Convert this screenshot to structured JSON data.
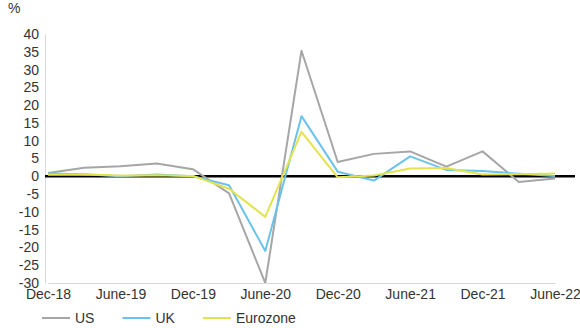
{
  "chart_data": {
    "type": "line",
    "y_label": "%",
    "categories": [
      "Dec-18",
      null,
      "June-19",
      null,
      "Dec-19",
      null,
      "June-20",
      null,
      "Dec-20",
      null,
      "June-21",
      null,
      "Dec-21",
      null,
      "June-22"
    ],
    "series": [
      {
        "name": "US",
        "color": "#a6a6a6",
        "values": [
          0.9,
          2.4,
          2.8,
          3.6,
          2.0,
          -4.8,
          -30.0,
          35.3,
          4.0,
          6.3,
          7.0,
          2.7,
          7.0,
          -1.6,
          -0.6
        ]
      },
      {
        "name": "UK",
        "color": "#6cc3ea",
        "values": [
          0.8,
          0.6,
          0.0,
          0.5,
          0.0,
          -2.5,
          -21.0,
          16.9,
          1.3,
          -1.2,
          5.6,
          1.8,
          1.5,
          0.7,
          0.1
        ]
      },
      {
        "name": "Eurozone",
        "color": "#e3e34d",
        "values": [
          0.4,
          0.5,
          0.2,
          0.3,
          0.1,
          -3.5,
          -11.4,
          12.5,
          -0.3,
          0.2,
          2.2,
          2.3,
          0.5,
          0.6,
          0.8
        ]
      }
    ],
    "ylim": [
      -30,
      40
    ],
    "yticks": [
      -30,
      -25,
      -20,
      -15,
      -10,
      -5,
      0,
      5,
      10,
      15,
      20,
      25,
      30,
      35,
      40
    ],
    "grid": false,
    "legend": "bottom"
  }
}
